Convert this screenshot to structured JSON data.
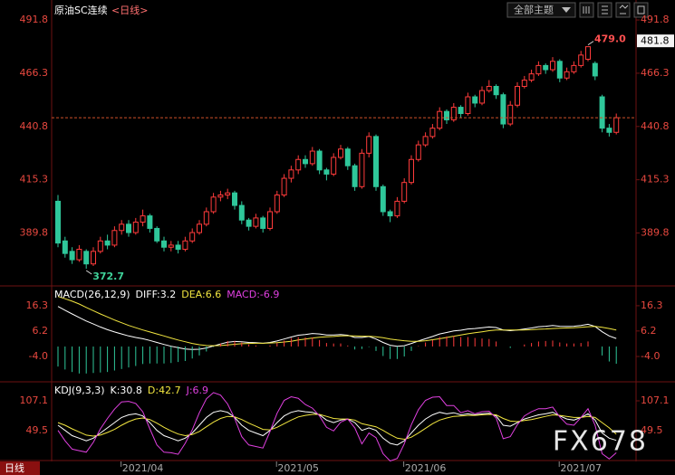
{
  "toolbar": {
    "theme_button": "全部主题",
    "period_tab": "日线"
  },
  "watermark": "FX678",
  "chart_data": [
    {
      "type": "candlestick",
      "title": "原油SC连续",
      "period": "<日线>",
      "open": [
        405,
        386,
        381,
        377,
        381,
        375,
        381,
        386,
        384,
        391,
        394,
        390,
        395,
        398,
        392,
        386,
        383,
        384,
        382,
        386,
        390,
        394,
        400,
        407,
        408,
        409,
        403,
        396,
        393,
        397,
        392,
        400,
        408,
        416,
        420,
        425,
        423,
        429,
        420,
        418,
        426,
        430,
        422,
        412,
        428,
        436,
        412,
        400,
        398,
        405,
        414,
        425,
        432,
        436,
        440,
        448,
        444,
        450,
        447,
        455,
        452,
        458,
        460,
        456,
        442,
        451,
        460,
        463,
        466,
        470,
        468,
        472,
        464,
        467,
        470,
        473,
        471,
        455,
        440,
        438
      ],
      "high": [
        408,
        388,
        383,
        384,
        382,
        383,
        388,
        389,
        393,
        396,
        396,
        397,
        401,
        399,
        393,
        388,
        386,
        386,
        388,
        392,
        396,
        402,
        409,
        410,
        411,
        410,
        405,
        397,
        399,
        398,
        402,
        410,
        418,
        422,
        427,
        427,
        431,
        430,
        421,
        428,
        432,
        431,
        423,
        430,
        438,
        437,
        413,
        401,
        407,
        416,
        427,
        434,
        438,
        442,
        450,
        449,
        452,
        451,
        457,
        456,
        460,
        463,
        461,
        457,
        453,
        462,
        465,
        468,
        472,
        471,
        474,
        473,
        469,
        472,
        477,
        479,
        472,
        456,
        442,
        447
      ],
      "low": [
        383,
        378,
        375,
        376,
        372.7,
        374,
        380,
        382,
        383,
        389,
        388,
        389,
        393,
        390,
        385,
        381,
        381,
        380,
        381,
        385,
        389,
        393,
        399,
        405,
        406,
        401,
        394,
        391,
        392,
        390,
        391,
        399,
        407,
        414,
        418,
        421,
        422,
        418,
        415,
        417,
        425,
        420,
        410,
        411,
        426,
        410,
        398,
        395,
        397,
        404,
        413,
        424,
        431,
        435,
        439,
        442,
        443,
        445,
        446,
        450,
        451,
        457,
        454,
        440,
        441,
        450,
        459,
        462,
        465,
        466,
        467,
        462,
        463,
        466,
        469,
        472,
        463,
        438,
        436,
        437
      ],
      "close": [
        385,
        380,
        377,
        382,
        375,
        381,
        386,
        384,
        391,
        394,
        390,
        395,
        398,
        392,
        386,
        383,
        384,
        382,
        386,
        390,
        394,
        400,
        407,
        408,
        409,
        403,
        396,
        393,
        397,
        392,
        400,
        408,
        416,
        420,
        425,
        423,
        429,
        420,
        418,
        426,
        430,
        422,
        412,
        428,
        436,
        412,
        400,
        398,
        405,
        414,
        425,
        432,
        436,
        440,
        448,
        444,
        450,
        447,
        455,
        452,
        458,
        460,
        456,
        442,
        451,
        460,
        463,
        466,
        470,
        468,
        472,
        464,
        467,
        470,
        475,
        479,
        465,
        440,
        438,
        445
      ],
      "up_color": "#ff3b3b",
      "down_color": "#2fc79a",
      "ylim": [
        364.9,
        499.2
      ],
      "yticks": [
        491.8,
        466.3,
        440.8,
        415.3,
        389.8
      ],
      "xticks": [
        {
          "value": 12,
          "label": "2021/04"
        },
        {
          "value": 34,
          "label": "2021/05"
        },
        {
          "value": 52,
          "label": "2021/06"
        },
        {
          "value": 74,
          "label": "2021/07"
        }
      ],
      "annotations": [
        {
          "label": "479.0",
          "value": 479
        },
        {
          "label": "372.7",
          "value": 372.7
        }
      ],
      "cursor_label": 481.8,
      "price_line": true
    },
    {
      "type": "macd",
      "title": "MACD(26,12,9)",
      "ylim": [
        -13.4,
        23.5
      ],
      "yticks": [
        16.3,
        6.2,
        {
          "value": -4,
          "label": "-4.0"
        }
      ],
      "series": [
        {
          "label": "DIFF:3.2",
          "style": "line",
          "color": "#ffffff",
          "values": [
            16.0,
            14.5,
            13.0,
            11.6,
            10.2,
            9.0,
            7.8,
            6.7,
            5.8,
            5.0,
            4.2,
            3.6,
            3.1,
            2.4,
            1.6,
            0.8,
            0.1,
            -0.5,
            -1.0,
            -1.2,
            -1.1,
            -0.6,
            0.2,
            1.0,
            1.7,
            2.0,
            1.9,
            1.6,
            1.5,
            1.3,
            1.6,
            2.2,
            3.0,
            3.8,
            4.5,
            4.8,
            5.2,
            5.0,
            4.6,
            4.6,
            4.8,
            4.5,
            3.6,
            3.6,
            4.0,
            3.0,
            1.6,
            0.5,
            0.1,
            0.3,
            1.2,
            2.2,
            3.1,
            4.0,
            5.0,
            5.6,
            6.2,
            6.5,
            7.0,
            7.2,
            7.5,
            7.8,
            7.6,
            6.6,
            6.3,
            6.6,
            7.0,
            7.4,
            7.9,
            8.1,
            8.4,
            8.1,
            8.0,
            8.1,
            8.4,
            8.9,
            8.0,
            5.9,
            4.2,
            3.2
          ]
        },
        {
          "label": "DEA:6.6",
          "style": "line",
          "color": "#f2e640",
          "values": [
            20.0,
            19.1,
            18.1,
            17.0,
            15.6,
            14.3,
            13.0,
            11.8,
            10.6,
            9.5,
            8.4,
            7.5,
            6.6,
            5.8,
            5.0,
            4.2,
            3.4,
            2.6,
            1.9,
            1.2,
            0.7,
            0.4,
            0.3,
            0.4,
            0.6,
            0.9,
            1.1,
            1.2,
            1.3,
            1.3,
            1.4,
            1.5,
            1.8,
            2.1,
            2.6,
            3.0,
            3.4,
            3.7,
            3.9,
            4.0,
            4.2,
            4.3,
            4.2,
            4.1,
            4.1,
            3.9,
            3.5,
            3.0,
            2.6,
            2.3,
            2.1,
            2.1,
            2.3,
            2.7,
            3.1,
            3.6,
            4.1,
            4.6,
            5.1,
            5.5,
            5.9,
            6.3,
            6.6,
            6.6,
            6.6,
            6.6,
            6.6,
            6.7,
            6.9,
            7.0,
            7.2,
            7.3,
            7.4,
            7.5,
            7.7,
            7.9,
            8.0,
            7.7,
            7.2,
            6.6
          ]
        },
        {
          "label": "MACD:-6.9",
          "style": "bar",
          "color": "#ff3b3b",
          "negative_color": "#2fc79a",
          "label_color": "#e040e0",
          "values": [
            -8.0,
            -9.2,
            -10.2,
            -10.8,
            -10.8,
            -10.6,
            -10.4,
            -10.2,
            -9.6,
            -9.0,
            -8.4,
            -7.8,
            -7.0,
            -6.8,
            -6.8,
            -6.8,
            -6.6,
            -6.2,
            -5.8,
            -4.8,
            -3.6,
            -2.0,
            -0.2,
            1.2,
            2.2,
            2.2,
            1.6,
            0.8,
            0.4,
            0.0,
            0.4,
            1.4,
            2.4,
            3.4,
            3.8,
            3.6,
            3.6,
            2.6,
            1.4,
            1.2,
            1.2,
            0.4,
            -1.2,
            -1.0,
            -0.2,
            -1.8,
            -3.8,
            -5.0,
            -5.0,
            -4.0,
            -1.8,
            0.2,
            1.6,
            2.6,
            3.8,
            4.0,
            4.2,
            3.8,
            3.8,
            3.4,
            3.2,
            3.0,
            2.0,
            0.0,
            -0.6,
            0.0,
            0.8,
            1.4,
            2.0,
            2.2,
            2.4,
            1.6,
            1.2,
            1.2,
            1.4,
            2.0,
            0.0,
            -3.6,
            -6.0,
            -6.9
          ]
        }
      ]
    },
    {
      "type": "line",
      "title": "KDJ(9,3,3)",
      "ylim": [
        -13.3,
        138.5
      ],
      "yticks": [
        107.1,
        49.5
      ],
      "series": [
        {
          "label": "K:30.8",
          "color": "#ffffff",
          "values": [
            60,
            50,
            40,
            35,
            30,
            35,
            45,
            55,
            65,
            75,
            80,
            82,
            78,
            65,
            50,
            40,
            35,
            30,
            35,
            45,
            60,
            75,
            85,
            88,
            85,
            75,
            60,
            50,
            45,
            40,
            50,
            65,
            78,
            85,
            88,
            86,
            85,
            80,
            70,
            65,
            70,
            72,
            65,
            50,
            55,
            50,
            35,
            25,
            22,
            30,
            45,
            60,
            72,
            80,
            85,
            82,
            84,
            80,
            82,
            80,
            82,
            83,
            78,
            60,
            58,
            65,
            72,
            76,
            80,
            82,
            85,
            78,
            72,
            70,
            75,
            82,
            70,
            45,
            35,
            30.8
          ]
        },
        {
          "label": "D:42.7",
          "color": "#f2e640",
          "values": [
            65,
            60,
            53,
            47,
            41,
            39,
            41,
            46,
            52,
            60,
            67,
            72,
            74,
            71,
            64,
            56,
            49,
            43,
            40,
            42,
            48,
            57,
            66,
            73,
            77,
            76,
            71,
            64,
            58,
            52,
            51,
            56,
            63,
            70,
            76,
            79,
            81,
            81,
            77,
            73,
            72,
            72,
            70,
            63,
            60,
            57,
            50,
            42,
            35,
            33,
            37,
            45,
            54,
            63,
            70,
            74,
            77,
            78,
            79,
            79,
            80,
            81,
            80,
            73,
            68,
            67,
            69,
            71,
            74,
            77,
            80,
            79,
            77,
            75,
            75,
            77,
            75,
            65,
            55,
            42.7
          ]
        },
        {
          "label": "J:6.9",
          "color": "#e040e0",
          "values": [
            50,
            30,
            14,
            11,
            8,
            27,
            53,
            73,
            91,
            105,
            106,
            102,
            86,
            53,
            22,
            8,
            7,
            4,
            25,
            51,
            84,
            111,
            123,
            118,
            101,
            73,
            38,
            22,
            19,
            16,
            48,
            83,
            108,
            115,
            112,
            100,
            93,
            78,
            56,
            49,
            66,
            72,
            55,
            24,
            45,
            36,
            5,
            -9,
            -4,
            24,
            61,
            90,
            108,
            114,
            115,
            98,
            98,
            84,
            88,
            82,
            86,
            87,
            74,
            34,
            38,
            61,
            78,
            86,
            92,
            92,
            95,
            76,
            62,
            60,
            75,
            92,
            60,
            5,
            -5,
            6.9
          ]
        }
      ]
    }
  ]
}
